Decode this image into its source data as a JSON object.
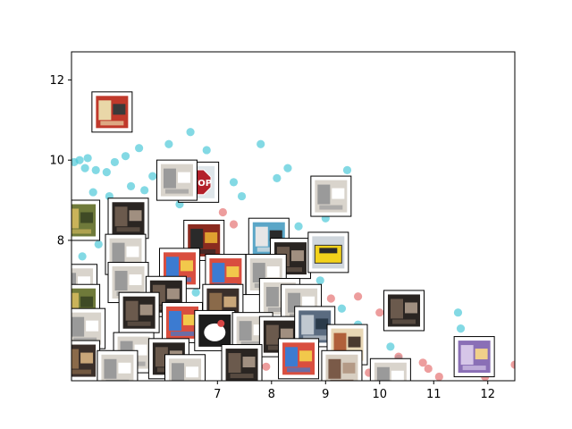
{
  "chart_data": {
    "type": "scatter",
    "title": "",
    "xlabel": "",
    "ylabel": "",
    "xlim": [
      4.3,
      12.5
    ],
    "ylim": [
      4.5,
      12.7
    ],
    "x_ticks": [
      7,
      8,
      9,
      10,
      11,
      12
    ],
    "x_tick_labels": [
      "7",
      "8",
      "9",
      "10",
      "11",
      "12"
    ],
    "y_ticks": [
      8,
      10,
      12
    ],
    "y_tick_labels": [
      "8",
      "10",
      "12"
    ],
    "grid": false,
    "legend": "none",
    "series": [
      {
        "color": "#4fc9d9",
        "points": [
          [
            4.35,
            9.95
          ],
          [
            4.45,
            10.0
          ],
          [
            4.55,
            9.8
          ],
          [
            4.6,
            10.05
          ],
          [
            4.75,
            9.75
          ],
          [
            4.95,
            9.7
          ],
          [
            5.1,
            9.95
          ],
          [
            5.3,
            10.1
          ],
          [
            5.55,
            10.3
          ],
          [
            4.7,
            9.2
          ],
          [
            5.0,
            9.1
          ],
          [
            5.4,
            9.35
          ],
          [
            5.65,
            9.25
          ],
          [
            5.8,
            9.6
          ],
          [
            6.1,
            10.4
          ],
          [
            6.5,
            10.7
          ],
          [
            6.8,
            10.25
          ],
          [
            7.3,
            9.45
          ],
          [
            7.45,
            9.1
          ],
          [
            7.8,
            10.4
          ],
          [
            8.1,
            9.55
          ],
          [
            8.3,
            9.8
          ],
          [
            8.5,
            8.35
          ],
          [
            9.0,
            8.55
          ],
          [
            9.4,
            9.75
          ],
          [
            9.3,
            7.55
          ],
          [
            8.9,
            7.0
          ],
          [
            7.6,
            7.1
          ],
          [
            7.9,
            6.8
          ],
          [
            6.9,
            7.4
          ],
          [
            6.6,
            6.7
          ],
          [
            6.0,
            6.95
          ],
          [
            5.7,
            6.6
          ],
          [
            8.7,
            6.05
          ],
          [
            9.3,
            6.3
          ],
          [
            9.6,
            5.9
          ],
          [
            10.2,
            5.35
          ],
          [
            10.35,
            5.05
          ],
          [
            11.45,
            6.2
          ],
          [
            11.5,
            5.8
          ],
          [
            4.5,
            7.6
          ],
          [
            4.8,
            7.9
          ],
          [
            5.2,
            8.2
          ],
          [
            6.3,
            8.9
          ],
          [
            7.0,
            8.15
          ]
        ]
      },
      {
        "color": "#e57373",
        "points": [
          [
            7.1,
            8.7
          ],
          [
            7.3,
            8.4
          ],
          [
            8.6,
            6.8
          ],
          [
            9.1,
            6.55
          ],
          [
            9.35,
            5.4
          ],
          [
            9.6,
            4.9
          ],
          [
            9.8,
            4.7
          ],
          [
            10.05,
            4.75
          ],
          [
            10.2,
            4.55
          ],
          [
            10.0,
            6.2
          ],
          [
            10.3,
            6.15
          ],
          [
            10.45,
            5.9
          ],
          [
            10.9,
            4.8
          ],
          [
            11.1,
            4.6
          ],
          [
            11.7,
            4.9
          ],
          [
            12.5,
            4.9
          ],
          [
            7.6,
            5.35
          ],
          [
            8.0,
            5.65
          ],
          [
            9.6,
            6.6
          ],
          [
            10.8,
            4.95
          ],
          [
            11.95,
            4.6
          ],
          [
            8.4,
            6.95
          ],
          [
            9.1,
            5.9
          ],
          [
            10.35,
            5.1
          ],
          [
            7.9,
            4.85
          ]
        ]
      }
    ]
  },
  "thumbnails": [
    {
      "x": 5.05,
      "y": 11.2,
      "kind": "shopfront"
    },
    {
      "x": 6.65,
      "y": 9.45,
      "kind": "stop-sign"
    },
    {
      "x": 6.25,
      "y": 9.5,
      "kind": "plain"
    },
    {
      "x": 9.1,
      "y": 9.1,
      "kind": "plain"
    },
    {
      "x": 4.45,
      "y": 8.5,
      "kind": "foliage"
    },
    {
      "x": 5.35,
      "y": 8.55,
      "kind": "dark"
    },
    {
      "x": 6.75,
      "y": 8.0,
      "kind": "bottles"
    },
    {
      "x": 7.95,
      "y": 8.05,
      "kind": "poster"
    },
    {
      "x": 8.35,
      "y": 7.55,
      "kind": "dark"
    },
    {
      "x": 9.05,
      "y": 7.7,
      "kind": "yellow-car"
    },
    {
      "x": 5.3,
      "y": 7.65,
      "kind": "plain"
    },
    {
      "x": 6.3,
      "y": 7.3,
      "kind": "colorful"
    },
    {
      "x": 7.15,
      "y": 7.15,
      "kind": "colorful"
    },
    {
      "x": 7.9,
      "y": 7.15,
      "kind": "plain"
    },
    {
      "x": 4.4,
      "y": 6.9,
      "kind": "plain"
    },
    {
      "x": 5.35,
      "y": 6.95,
      "kind": "plain"
    },
    {
      "x": 4.45,
      "y": 6.4,
      "kind": "foliage"
    },
    {
      "x": 6.05,
      "y": 6.6,
      "kind": "dark"
    },
    {
      "x": 7.1,
      "y": 6.4,
      "kind": "pattern"
    },
    {
      "x": 8.15,
      "y": 6.55,
      "kind": "plain"
    },
    {
      "x": 8.55,
      "y": 6.4,
      "kind": "plain"
    },
    {
      "x": 10.45,
      "y": 6.25,
      "kind": "dark"
    },
    {
      "x": 5.55,
      "y": 6.2,
      "kind": "dark"
    },
    {
      "x": 6.35,
      "y": 5.95,
      "kind": "colorful"
    },
    {
      "x": 4.55,
      "y": 5.8,
      "kind": "plain"
    },
    {
      "x": 6.95,
      "y": 5.75,
      "kind": "hello-kitty"
    },
    {
      "x": 7.65,
      "y": 5.7,
      "kind": "plain"
    },
    {
      "x": 8.15,
      "y": 5.6,
      "kind": "dark"
    },
    {
      "x": 8.8,
      "y": 5.85,
      "kind": "street"
    },
    {
      "x": 9.4,
      "y": 5.4,
      "kind": "figures"
    },
    {
      "x": 4.45,
      "y": 5.0,
      "kind": "pattern"
    },
    {
      "x": 5.45,
      "y": 5.2,
      "kind": "plain"
    },
    {
      "x": 6.1,
      "y": 5.05,
      "kind": "dark"
    },
    {
      "x": 7.45,
      "y": 4.9,
      "kind": "dark"
    },
    {
      "x": 8.5,
      "y": 5.05,
      "kind": "colorful"
    },
    {
      "x": 9.3,
      "y": 4.75,
      "kind": "sketch"
    },
    {
      "x": 10.2,
      "y": 4.55,
      "kind": "orange"
    },
    {
      "x": 11.75,
      "y": 5.1,
      "kind": "purple"
    },
    {
      "x": 5.15,
      "y": 4.75,
      "kind": "plain"
    },
    {
      "x": 6.4,
      "y": 4.65,
      "kind": "plain"
    }
  ]
}
